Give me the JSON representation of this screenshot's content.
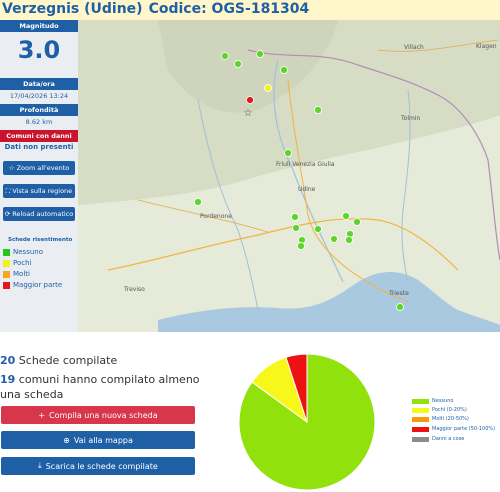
{
  "header": {
    "title": "Verzegnis (Udine)",
    "code": "Codice: OGS-181304"
  },
  "sidebar": {
    "magnitude_label": "Magnitudo",
    "magnitude_value": "3.0",
    "datetime_label": "Data/ora",
    "datetime_value": "17/04/2026 13:24",
    "depth_label": "Profondità",
    "depth_value": "8.62 km",
    "damage_label": "Comuni con danni",
    "damage_value": "Dati non presenti",
    "zoom_button": "Zoom all'evento",
    "region_button": "Vista sulla regione",
    "reload_button": "Reload automatico",
    "legend_title": "Schede risentimento",
    "legend": [
      {
        "label": "Nessuno",
        "color": "#22c91a"
      },
      {
        "label": "Pochi",
        "color": "#f2f21a"
      },
      {
        "label": "Molti",
        "color": "#f5a623"
      },
      {
        "label": "Maggior parte",
        "color": "#e0161b"
      }
    ]
  },
  "map": {
    "labels": [
      "Villach",
      "Klagen",
      "Friuli Venezia Giulia",
      "Udine",
      "Pordenone",
      "Treviso",
      "Trieste",
      "Tolmin"
    ]
  },
  "stats": {
    "schede_count": "20",
    "schede_text": " Schede compilate",
    "comuni_count": "19",
    "comuni_text": " comuni hanno compilato almeno una scheda"
  },
  "actions": {
    "new_form": "Compila una nuova scheda",
    "map": "Vai alla mappa",
    "download": "Scarica le schede compilate"
  },
  "chart_data": {
    "type": "pie",
    "categories": [
      "Nessuno",
      "Pochi (0-20%)",
      "Molti (20-50%)",
      "Maggior parte (50-100%)",
      "Danni a cose"
    ],
    "values": [
      17,
      2,
      0,
      1,
      0
    ],
    "colors": [
      "#91e20c",
      "#f7f71a",
      "#f59a0b",
      "#ee1111",
      "#8c8c8c"
    ],
    "title": "",
    "legend_position": "right"
  }
}
